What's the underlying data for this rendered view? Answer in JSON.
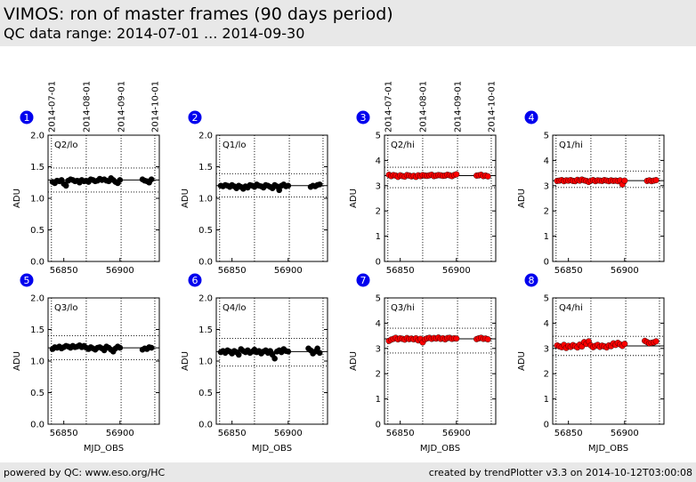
{
  "header": {
    "title": "VIMOS: ron of master frames (90 days period)",
    "subtitle": "QC data range: 2014-07-01 ... 2014-09-30"
  },
  "footer": {
    "left": "powered by QC: www.eso.org/HC",
    "right": "created by trendPlotter v3.3 on 2014-10-12T03:00:08"
  },
  "chart_data": {
    "type": "scatter",
    "xlabel": "MJD_OBS",
    "ylabel": "ADU",
    "xlim": [
      56836,
      56935
    ],
    "x_ticks": [
      56850,
      56900
    ],
    "date_ticks": [
      {
        "label": "2014-07-01",
        "mjd": 56839
      },
      {
        "label": "2014-08-01",
        "mjd": 56870
      },
      {
        "label": "2014-09-01",
        "mjd": 56901
      },
      {
        "label": "2014-10-01",
        "mjd": 56931
      }
    ],
    "panels": [
      {
        "index": "1",
        "label": "Q2/lo",
        "color": "#000000",
        "ylim": [
          0,
          2.0
        ],
        "y_ticks": [
          "0.0",
          "0.5",
          "1.0",
          "1.5",
          "2.0"
        ],
        "ref": 1.29,
        "limits": [
          1.1,
          1.48
        ],
        "x": [
          56840,
          56842,
          56844,
          56846,
          56848,
          56850,
          56852,
          56854,
          56856,
          56858,
          56860,
          56862,
          56864,
          56866,
          56868,
          56870,
          56872,
          56874,
          56876,
          56878,
          56880,
          56882,
          56884,
          56886,
          56888,
          56890,
          56892,
          56894,
          56896,
          56898,
          56900,
          56920,
          56922,
          56924,
          56926,
          56928
        ],
        "y": [
          1.26,
          1.24,
          1.28,
          1.27,
          1.29,
          1.23,
          1.2,
          1.28,
          1.3,
          1.29,
          1.27,
          1.28,
          1.25,
          1.29,
          1.27,
          1.28,
          1.26,
          1.3,
          1.29,
          1.27,
          1.28,
          1.31,
          1.29,
          1.3,
          1.28,
          1.27,
          1.32,
          1.29,
          1.26,
          1.24,
          1.29,
          1.3,
          1.28,
          1.27,
          1.25,
          1.3
        ]
      },
      {
        "index": "2",
        "label": "Q1/lo",
        "color": "#000000",
        "ylim": [
          0,
          2.0
        ],
        "y_ticks": [
          "0.0",
          "0.5",
          "1.0",
          "1.5",
          "2.0"
        ],
        "ref": 1.2,
        "limits": [
          1.02,
          1.39
        ],
        "x": [
          56840,
          56842,
          56844,
          56846,
          56848,
          56850,
          56852,
          56854,
          56856,
          56858,
          56860,
          56862,
          56864,
          56866,
          56868,
          56870,
          56872,
          56874,
          56876,
          56878,
          56880,
          56882,
          56884,
          56886,
          56888,
          56890,
          56892,
          56894,
          56896,
          56898,
          56900,
          56920,
          56922,
          56924,
          56926,
          56928
        ],
        "y": [
          1.2,
          1.19,
          1.21,
          1.2,
          1.18,
          1.21,
          1.19,
          1.16,
          1.2,
          1.18,
          1.15,
          1.19,
          1.17,
          1.21,
          1.2,
          1.18,
          1.22,
          1.2,
          1.19,
          1.17,
          1.21,
          1.2,
          1.18,
          1.16,
          1.21,
          1.19,
          1.13,
          1.2,
          1.22,
          1.19,
          1.2,
          1.18,
          1.2,
          1.19,
          1.21,
          1.22
        ]
      },
      {
        "index": "3",
        "label": "Q2/hi",
        "color": "#ff0000",
        "ylim": [
          0,
          5
        ],
        "y_ticks": [
          "0",
          "1",
          "2",
          "3",
          "4",
          "5"
        ],
        "ref": 3.4,
        "limits": [
          2.92,
          3.73
        ],
        "x": [
          56840,
          56842,
          56844,
          56846,
          56848,
          56850,
          56852,
          56854,
          56856,
          56858,
          56860,
          56862,
          56864,
          56866,
          56868,
          56870,
          56872,
          56874,
          56876,
          56878,
          56880,
          56882,
          56884,
          56886,
          56888,
          56890,
          56892,
          56894,
          56896,
          56898,
          56900,
          56918,
          56920,
          56922,
          56924,
          56926,
          56928
        ],
        "y": [
          3.43,
          3.38,
          3.42,
          3.4,
          3.35,
          3.41,
          3.38,
          3.36,
          3.42,
          3.4,
          3.37,
          3.39,
          3.35,
          3.41,
          3.38,
          3.42,
          3.4,
          3.39,
          3.41,
          3.43,
          3.38,
          3.4,
          3.42,
          3.41,
          3.39,
          3.4,
          3.43,
          3.41,
          3.38,
          3.42,
          3.45,
          3.4,
          3.41,
          3.43,
          3.38,
          3.4,
          3.37
        ]
      },
      {
        "index": "4",
        "label": "Q1/hi",
        "color": "#ff0000",
        "ylim": [
          0,
          5
        ],
        "y_ticks": [
          "0",
          "1",
          "2",
          "3",
          "4",
          "5"
        ],
        "ref": 3.2,
        "limits": [
          2.93,
          3.58
        ],
        "x": [
          56840,
          56842,
          56844,
          56846,
          56848,
          56850,
          56852,
          56854,
          56856,
          56858,
          56860,
          56862,
          56864,
          56866,
          56868,
          56870,
          56872,
          56874,
          56876,
          56878,
          56880,
          56882,
          56884,
          56886,
          56888,
          56890,
          56892,
          56894,
          56896,
          56898,
          56900,
          56920,
          56922,
          56924,
          56926,
          56928
        ],
        "y": [
          3.19,
          3.2,
          3.22,
          3.18,
          3.21,
          3.2,
          3.22,
          3.19,
          3.18,
          3.23,
          3.2,
          3.24,
          3.21,
          3.19,
          3.15,
          3.2,
          3.22,
          3.18,
          3.21,
          3.2,
          3.19,
          3.22,
          3.2,
          3.18,
          3.21,
          3.19,
          3.2,
          3.18,
          3.21,
          3.05,
          3.2,
          3.19,
          3.21,
          3.18,
          3.2,
          3.22
        ]
      },
      {
        "index": "5",
        "label": "Q3/lo",
        "color": "#000000",
        "ylim": [
          0,
          2.0
        ],
        "y_ticks": [
          "0.0",
          "0.5",
          "1.0",
          "1.5",
          "2.0"
        ],
        "ref": 1.21,
        "limits": [
          1.02,
          1.4
        ],
        "x": [
          56840,
          56842,
          56844,
          56846,
          56848,
          56850,
          56852,
          56854,
          56856,
          56858,
          56860,
          56862,
          56864,
          56866,
          56868,
          56870,
          56872,
          56874,
          56876,
          56878,
          56880,
          56882,
          56884,
          56886,
          56888,
          56890,
          56892,
          56894,
          56896,
          56898,
          56900,
          56920,
          56922,
          56924,
          56926,
          56928
        ],
        "y": [
          1.19,
          1.22,
          1.21,
          1.23,
          1.2,
          1.22,
          1.24,
          1.23,
          1.21,
          1.24,
          1.22,
          1.23,
          1.25,
          1.22,
          1.24,
          1.21,
          1.19,
          1.22,
          1.2,
          1.18,
          1.21,
          1.22,
          1.2,
          1.17,
          1.23,
          1.21,
          1.18,
          1.15,
          1.2,
          1.23,
          1.21,
          1.18,
          1.2,
          1.19,
          1.22,
          1.21
        ]
      },
      {
        "index": "6",
        "label": "Q4/lo",
        "color": "#000000",
        "ylim": [
          0,
          2.0
        ],
        "y_ticks": [
          "0.0",
          "0.5",
          "1.0",
          "1.5",
          "2.0"
        ],
        "ref": 1.15,
        "limits": [
          0.92,
          1.36
        ],
        "x": [
          56840,
          56842,
          56844,
          56846,
          56848,
          56850,
          56852,
          56854,
          56856,
          56858,
          56860,
          56862,
          56864,
          56866,
          56868,
          56870,
          56872,
          56874,
          56876,
          56878,
          56880,
          56882,
          56884,
          56886,
          56888,
          56890,
          56892,
          56894,
          56896,
          56898,
          56900,
          56918,
          56920,
          56922,
          56924,
          56926,
          56928
        ],
        "y": [
          1.14,
          1.16,
          1.13,
          1.17,
          1.15,
          1.12,
          1.16,
          1.14,
          1.1,
          1.19,
          1.16,
          1.14,
          1.17,
          1.13,
          1.15,
          1.18,
          1.14,
          1.16,
          1.12,
          1.15,
          1.17,
          1.13,
          1.16,
          1.1,
          1.04,
          1.15,
          1.17,
          1.14,
          1.19,
          1.16,
          1.15,
          1.2,
          1.17,
          1.12,
          1.15,
          1.2,
          1.13
        ]
      },
      {
        "index": "7",
        "label": "Q3/hi",
        "color": "#ff0000",
        "ylim": [
          0,
          5
        ],
        "y_ticks": [
          "0",
          "1",
          "2",
          "3",
          "4",
          "5"
        ],
        "ref": 3.38,
        "limits": [
          2.82,
          3.8
        ],
        "x": [
          56840,
          56842,
          56844,
          56846,
          56848,
          56850,
          56852,
          56854,
          56856,
          56858,
          56860,
          56862,
          56864,
          56866,
          56868,
          56870,
          56872,
          56874,
          56876,
          56878,
          56880,
          56882,
          56884,
          56886,
          56888,
          56890,
          56892,
          56894,
          56896,
          56898,
          56900,
          56918,
          56920,
          56922,
          56924,
          56926,
          56928
        ],
        "y": [
          3.3,
          3.35,
          3.38,
          3.42,
          3.36,
          3.4,
          3.38,
          3.35,
          3.41,
          3.37,
          3.39,
          3.36,
          3.4,
          3.32,
          3.38,
          3.24,
          3.36,
          3.4,
          3.42,
          3.38,
          3.41,
          3.39,
          3.43,
          3.38,
          3.4,
          3.36,
          3.41,
          3.42,
          3.38,
          3.4,
          3.39,
          3.37,
          3.4,
          3.42,
          3.38,
          3.39,
          3.36
        ]
      },
      {
        "index": "8",
        "label": "Q4/hi",
        "color": "#ff0000",
        "ylim": [
          0,
          5
        ],
        "y_ticks": [
          "0",
          "1",
          "2",
          "3",
          "4",
          "5"
        ],
        "ref": 3.1,
        "limits": [
          2.72,
          3.48
        ],
        "x": [
          56840,
          56842,
          56844,
          56846,
          56848,
          56850,
          56852,
          56854,
          56856,
          56858,
          56860,
          56862,
          56864,
          56866,
          56868,
          56870,
          56872,
          56874,
          56876,
          56878,
          56880,
          56882,
          56884,
          56886,
          56888,
          56890,
          56892,
          56894,
          56896,
          56898,
          56900,
          56918,
          56920,
          56922,
          56924,
          56926,
          56928
        ],
        "y": [
          3.12,
          3.08,
          3.05,
          3.14,
          3.02,
          3.1,
          3.06,
          3.13,
          3.09,
          3.04,
          3.15,
          3.08,
          3.25,
          3.18,
          3.28,
          3.12,
          3.05,
          3.1,
          3.14,
          3.06,
          3.11,
          3.08,
          3.04,
          3.12,
          3.09,
          3.2,
          3.14,
          3.22,
          3.16,
          3.1,
          3.18,
          3.3,
          3.25,
          3.2,
          3.22,
          3.24,
          3.28
        ]
      }
    ]
  }
}
